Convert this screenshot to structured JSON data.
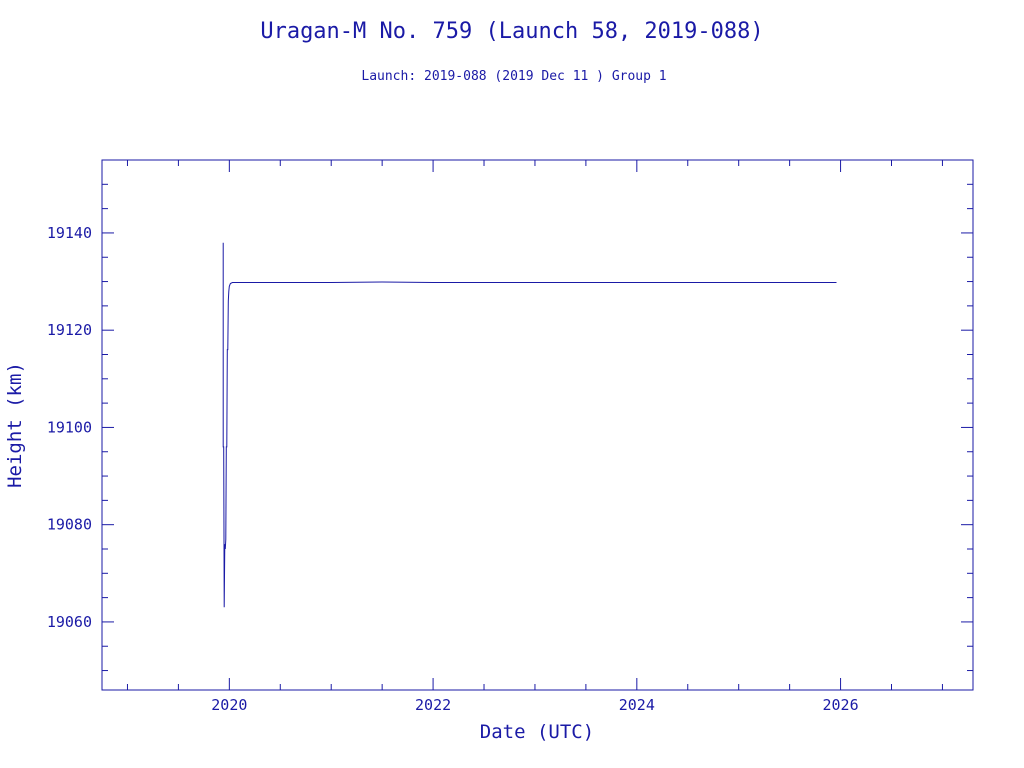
{
  "chart_data": {
    "type": "line",
    "title": "Uragan-M No. 759 (Launch 58, 2019-088)",
    "subtitle": "Launch: 2019-088  (2019 Dec 11 )  Group 1",
    "xlabel": "Date (UTC)",
    "ylabel": "Height (km)",
    "xlim": [
      2018.75,
      2027.3
    ],
    "ylim": [
      19046,
      19155
    ],
    "x_major_ticks": [
      2020,
      2022,
      2024,
      2026
    ],
    "x_minor_step": 0.5,
    "y_major_ticks": [
      19060,
      19080,
      19100,
      19120,
      19140
    ],
    "y_minor_step": 5,
    "grid": false,
    "series": [
      {
        "color": "#1a1aa6",
        "x": [
          2019.94,
          2019.94,
          2019.945,
          2019.95,
          2019.955,
          2019.96,
          2019.965,
          2019.97,
          2019.975,
          2019.98,
          2019.985,
          2019.99,
          2019.995,
          2020.0,
          2020.01,
          2020.03,
          2020.06,
          2020.1,
          2020.5,
          2021,
          2021.5,
          2022,
          2023,
          2024,
          2025,
          2025.96
        ],
        "y": [
          19138,
          19096,
          19096,
          19063,
          19076,
          19075,
          19077,
          19096,
          19096,
          19116,
          19116,
          19126,
          19128,
          19129,
          19129.6,
          19129.8,
          19129.8,
          19129.8,
          19129.8,
          19129.8,
          19129.9,
          19129.8,
          19129.8,
          19129.8,
          19129.8,
          19129.8
        ]
      }
    ]
  }
}
